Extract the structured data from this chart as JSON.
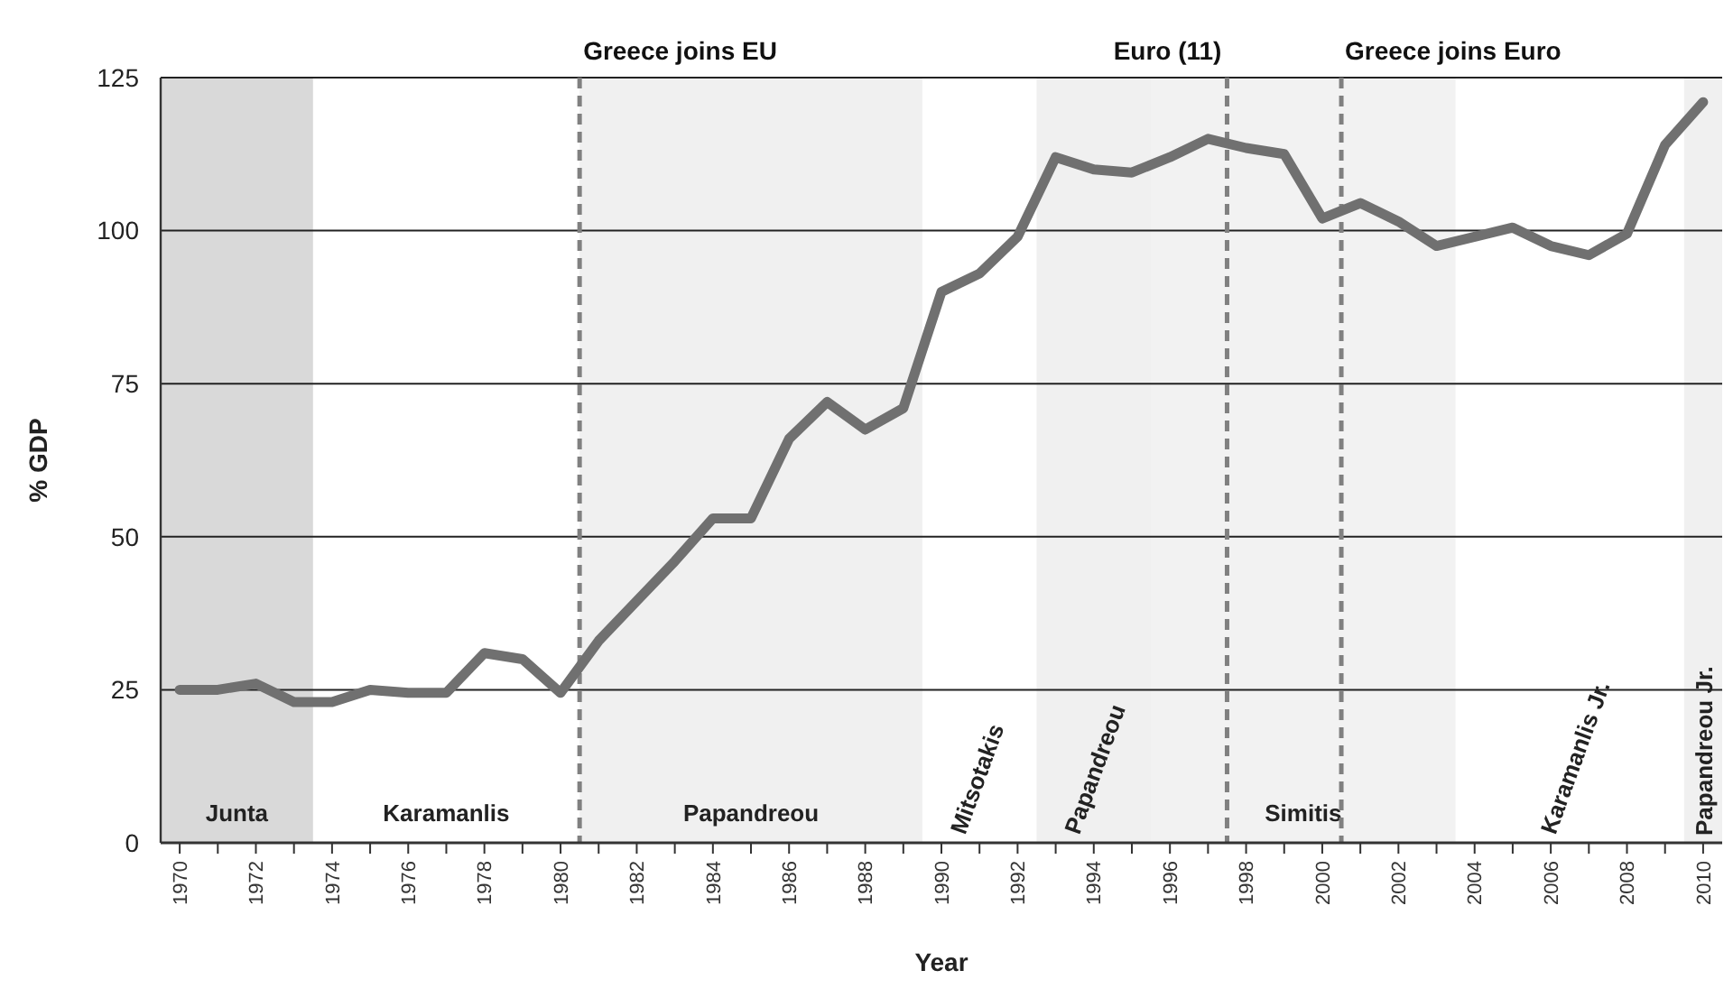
{
  "chart_data": {
    "type": "line",
    "xlabel": "Year",
    "ylabel": "% GDP",
    "x": [
      1970,
      1971,
      1972,
      1973,
      1974,
      1975,
      1976,
      1977,
      1978,
      1979,
      1980,
      1981,
      1982,
      1983,
      1984,
      1985,
      1986,
      1987,
      1988,
      1989,
      1990,
      1991,
      1992,
      1993,
      1994,
      1995,
      1996,
      1997,
      1998,
      1999,
      2000,
      2001,
      2002,
      2003,
      2004,
      2005,
      2006,
      2007,
      2008,
      2009,
      2010
    ],
    "series": [
      {
        "color": "#707070",
        "values": [
          25,
          25,
          26,
          23,
          23,
          25,
          24.5,
          24.5,
          31,
          30,
          24.5,
          33,
          39.5,
          46,
          53,
          53,
          66,
          72,
          67.5,
          71,
          90,
          93,
          99,
          112,
          110,
          109.5,
          112,
          115,
          113.5,
          112.5,
          102,
          104.5,
          101.5,
          97.5,
          99,
          100.5,
          97.5,
          96,
          99.5,
          114,
          121
        ]
      }
    ],
    "xlim": [
      1969.5,
      2010.5
    ],
    "xticks": [
      1970,
      {
        "value": 1971,
        "label": null
      },
      1972,
      {
        "value": 1973,
        "label": null
      },
      1974,
      {
        "value": 1975,
        "label": null
      },
      1976,
      {
        "value": 1977,
        "label": null
      },
      1978,
      {
        "value": 1979,
        "label": null
      },
      1980,
      {
        "value": 1981,
        "label": null
      },
      1982,
      {
        "value": 1983,
        "label": null
      },
      1984,
      {
        "value": 1985,
        "label": null
      },
      1986,
      {
        "value": 1987,
        "label": null
      },
      1988,
      {
        "value": 1989,
        "label": null
      },
      1990,
      {
        "value": 1991,
        "label": null
      },
      1992,
      {
        "value": 1993,
        "label": null
      },
      1994,
      {
        "value": 1995,
        "label": null
      },
      1996,
      {
        "value": 1997,
        "label": null
      },
      1998,
      {
        "value": 1999,
        "label": null
      },
      2000,
      {
        "value": 2001,
        "label": null
      },
      2002,
      {
        "value": 2003,
        "label": null
      },
      2004,
      {
        "value": 2005,
        "label": null
      },
      2006,
      {
        "value": 2007,
        "label": null
      },
      2008,
      {
        "value": 2009,
        "label": null
      },
      2010
    ],
    "ylim": [
      0,
      125
    ],
    "yticks": [
      0,
      25,
      50,
      75,
      100,
      125
    ],
    "grid": "y",
    "line_style": "solid",
    "bands": [
      {
        "axis": "x",
        "from": 1969.5,
        "to": 1973.5,
        "label": "Junta",
        "color": "#d9d9d9"
      },
      {
        "axis": "x",
        "from": 1980.5,
        "to": 1989.5,
        "label": "Papandreou",
        "color": "#f0f0f0"
      },
      {
        "axis": "x",
        "from": 1992.5,
        "to": 1995.5,
        "label": "Papandreou",
        "color": "#f0f0f0"
      },
      {
        "axis": "x",
        "from": 1995.5,
        "to": 2003.5,
        "label": "Simitis",
        "color": "#f2f2f2"
      },
      {
        "axis": "x",
        "from": 2009.5,
        "to": 2010.5,
        "label": "Papandreou Jr.",
        "color": "#f0f0f0"
      }
    ],
    "annotations": [
      "Karamanlis",
      "Mitsotakis",
      "Karamanlis Jr."
    ],
    "ref_lines": [
      {
        "axis": "x",
        "value": 1980.5,
        "label": "Greece joins EU",
        "color": "#808080",
        "line_style": "dashed"
      },
      {
        "axis": "x",
        "value": 1997.5,
        "label": "Euro (11)",
        "color": "#808080",
        "line_style": "dashed"
      },
      {
        "axis": "x",
        "value": 2000.5,
        "label": "Greece joins Euro",
        "color": "#808080",
        "line_style": "dashed"
      }
    ]
  }
}
